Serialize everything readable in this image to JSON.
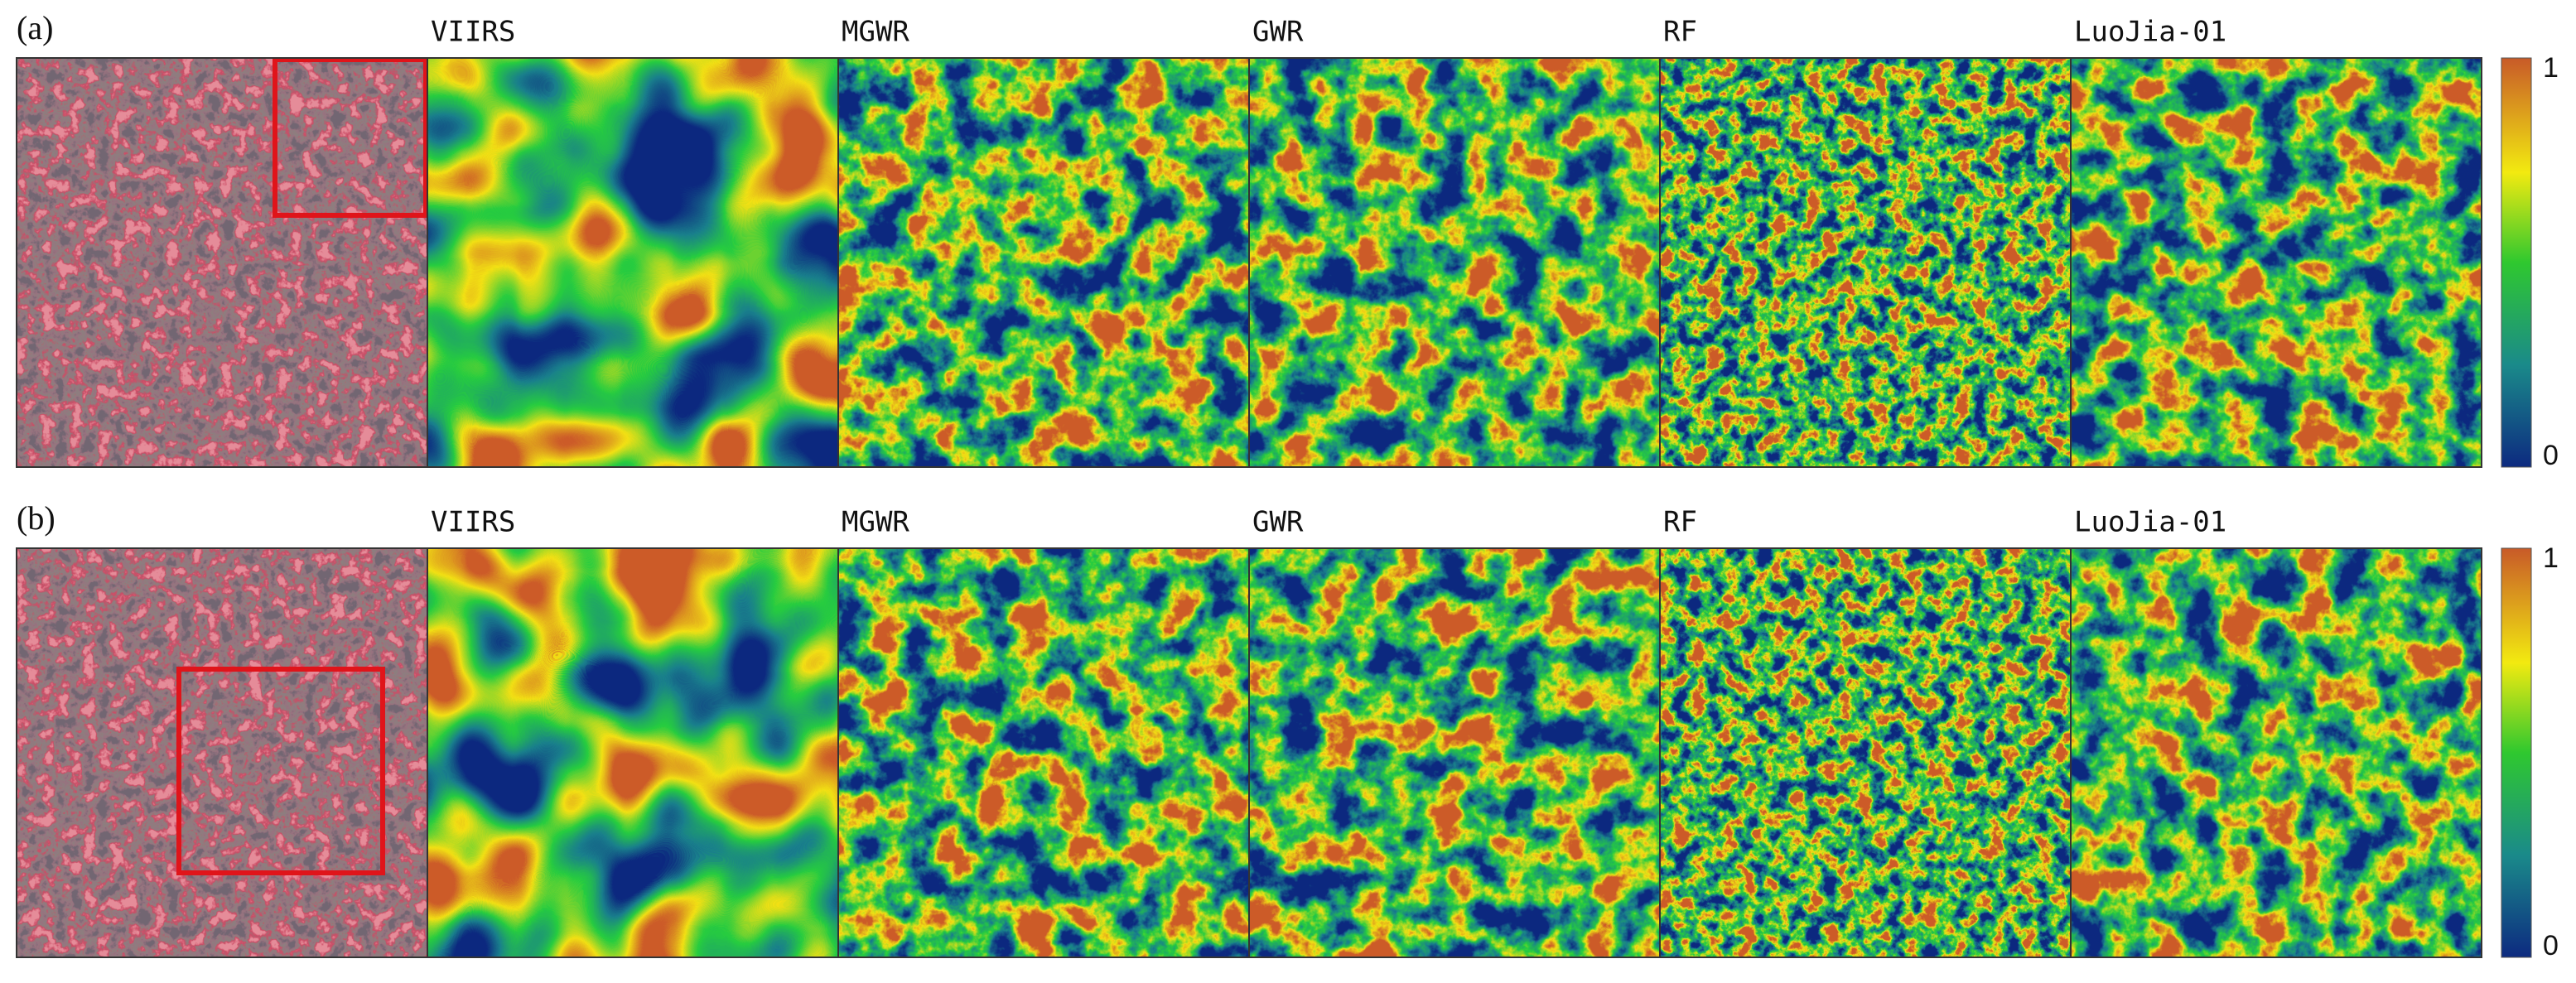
{
  "rows": [
    {
      "label": "(a)",
      "panels": [
        "VIIRS",
        "MGWR",
        "GWR",
        "RF",
        "LuoJia-01"
      ],
      "colorbar": {
        "max": 1,
        "min": 0
      }
    },
    {
      "label": "(b)",
      "panels": [
        "VIIRS",
        "MGWR",
        "GWR",
        "RF",
        "LuoJia-01"
      ],
      "colorbar": {
        "max": 1,
        "min": 0
      }
    }
  ]
}
